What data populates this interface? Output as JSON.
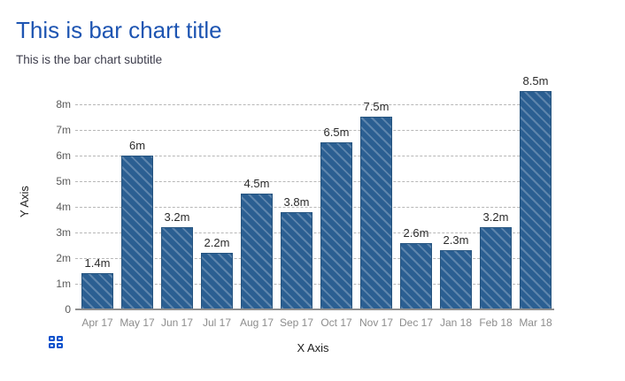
{
  "chart_data": {
    "type": "bar",
    "title": "This is bar chart title",
    "subtitle": "This is the bar chart subtitle",
    "xlabel": "X Axis",
    "ylabel": "Y Axis",
    "categories": [
      "Apr 17",
      "May 17",
      "Jun 17",
      "Jul 17",
      "Aug 17",
      "Sep 17",
      "Oct 17",
      "Nov 17",
      "Dec 17",
      "Jan 18",
      "Feb 18",
      "Mar 18"
    ],
    "values": [
      1.4,
      6,
      3.2,
      2.2,
      4.5,
      3.8,
      6.5,
      7.5,
      2.6,
      2.3,
      3.2,
      8.5
    ],
    "value_labels": [
      "1.4m",
      "6m",
      "3.2m",
      "2.2m",
      "4.5m",
      "3.8m",
      "6.5m",
      "7.5m",
      "2.6m",
      "2.3m",
      "3.2m",
      "8.5m"
    ],
    "y_tick_labels": [
      "0",
      "1m",
      "2m",
      "3m",
      "4m",
      "5m",
      "6m",
      "7m",
      "8m"
    ],
    "ylim": [
      0,
      8.6
    ],
    "grid": "horizontal-dashed",
    "legend": "none",
    "bar_color": "#2b5f92",
    "bar_stripe_color": "#547fab"
  },
  "colors": {
    "title": "#1e55b2",
    "subtitle": "#3d3d4c",
    "axis_title": "#222222",
    "y_tick_label": "#5a5a5a",
    "x_tick_label": "#8c8c8c",
    "value_label": "#2b2b2b",
    "gridline": "#b7b7b7",
    "baseline": "#8f8f8f",
    "icon_blue": "#0b51cc"
  },
  "icons": {
    "grid_menu": "grid-2x2-icon"
  }
}
